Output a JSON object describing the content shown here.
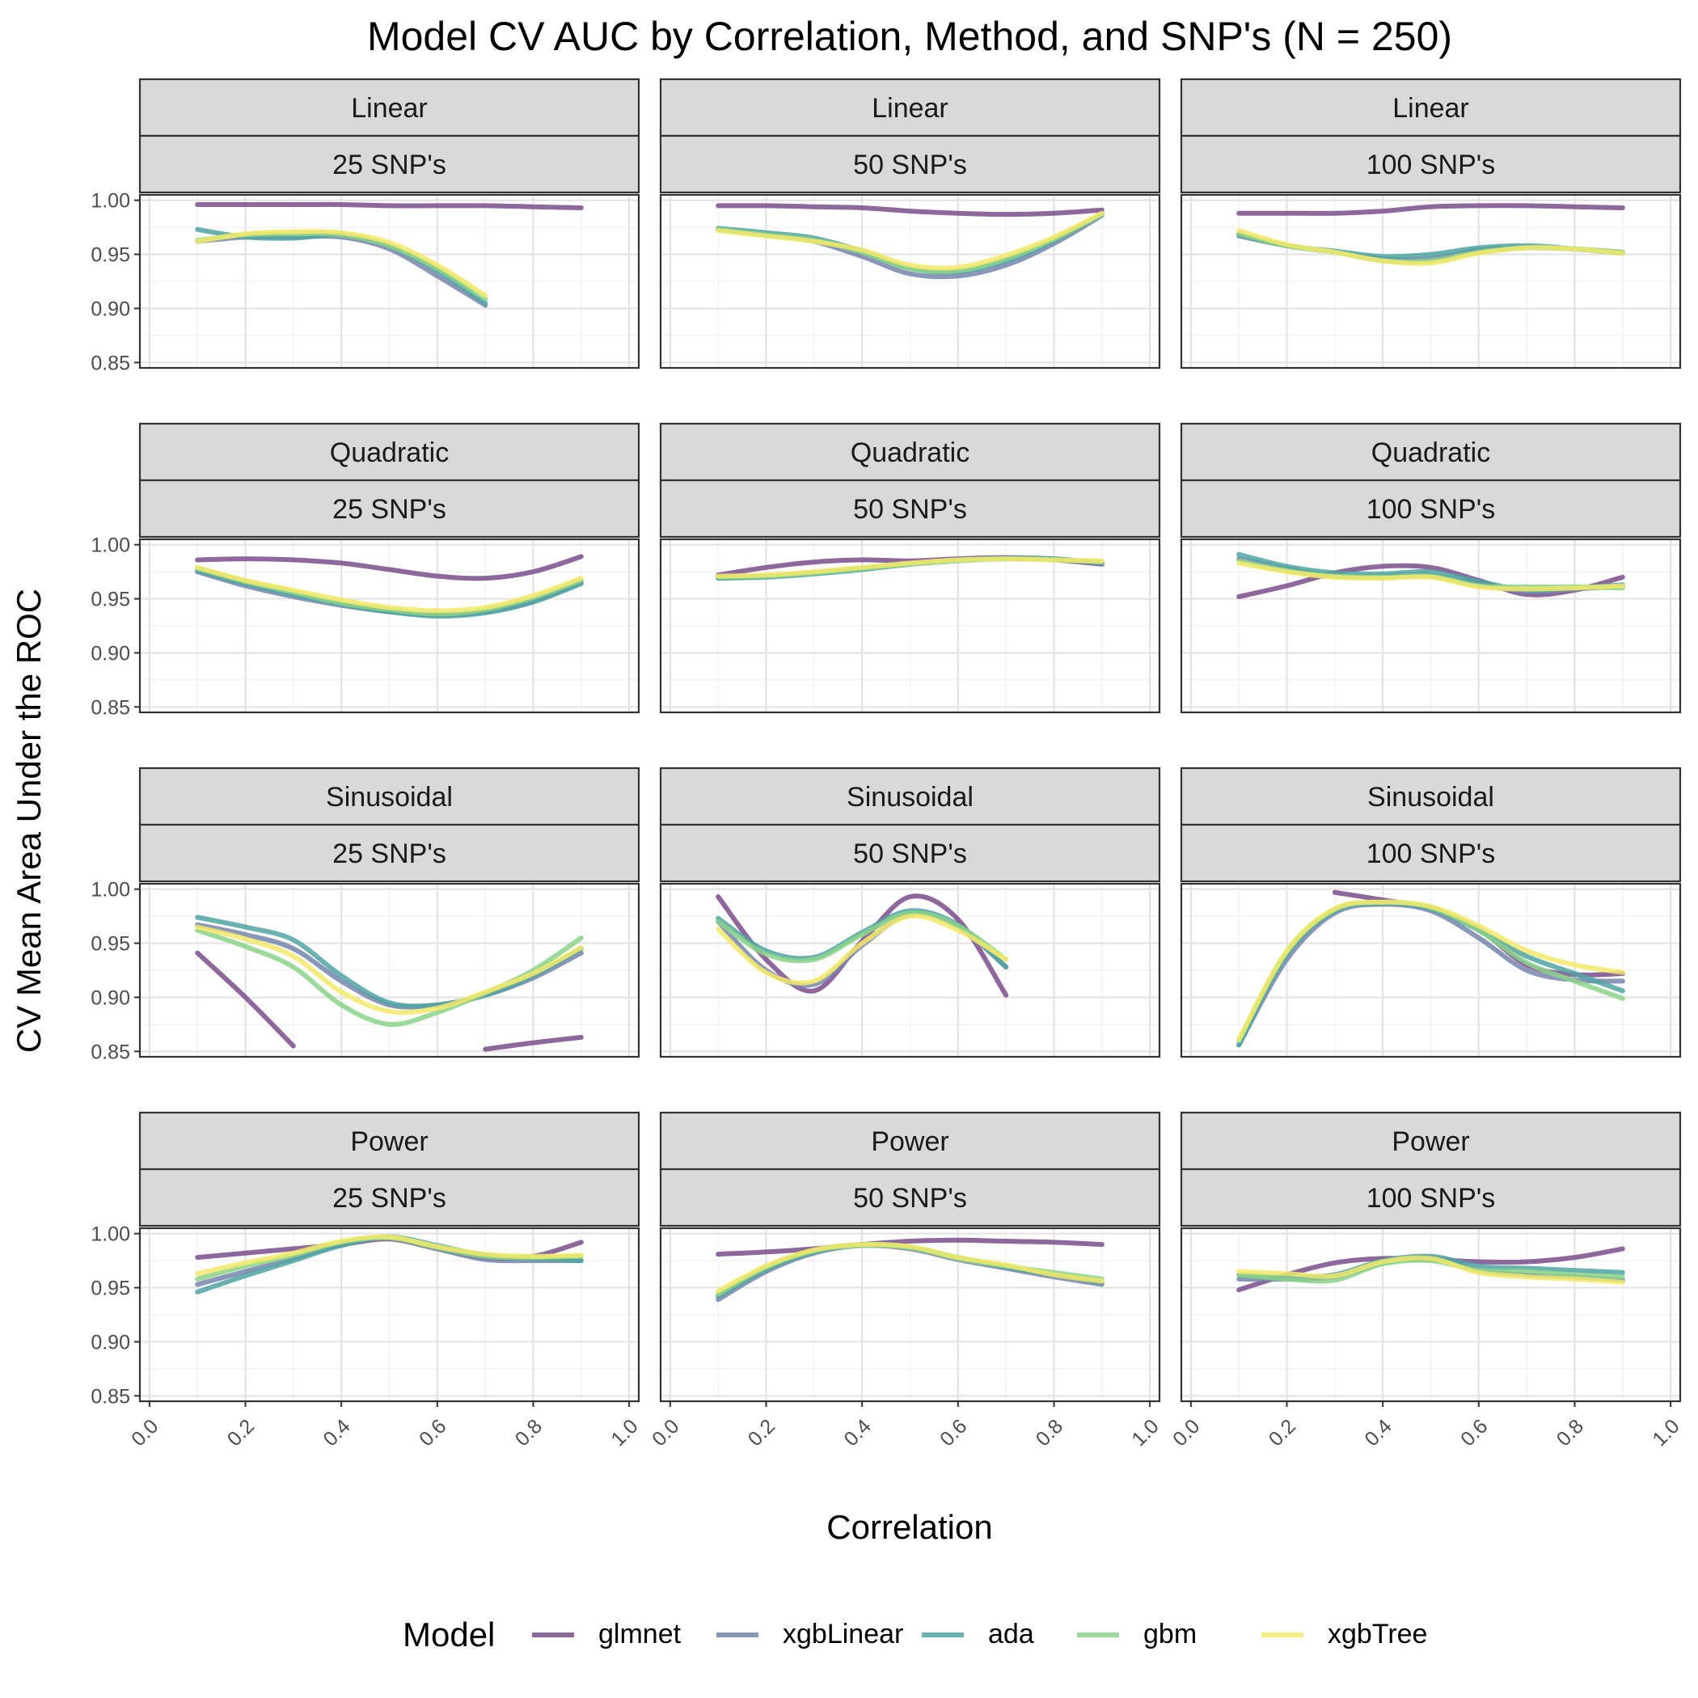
{
  "chart_data": {
    "type": "line",
    "title": "Model CV AUC by Correlation, Method, and SNP's (N = 250)",
    "xlabel": "Correlation",
    "ylabel": "CV Mean Area Under the ROC",
    "xlim": [
      -0.02,
      1.02
    ],
    "ylim": [
      0.845,
      1.005
    ],
    "x_ticks": [
      0.0,
      0.2,
      0.4,
      0.6,
      0.8,
      1.0
    ],
    "x_tick_labels": [
      "0.0",
      "0.2",
      "0.4",
      "0.6",
      "0.8",
      "1.0"
    ],
    "y_ticks": [
      0.85,
      0.9,
      0.95,
      1.0
    ],
    "y_tick_labels": [
      "0.85",
      "0.90",
      "0.95",
      "1.00"
    ],
    "grid": true,
    "legend": {
      "title": "Model",
      "position": "bottom",
      "entries": [
        "glmnet",
        "xgbLinear",
        "ada",
        "gbm",
        "xgbTree"
      ]
    },
    "series_colors": {
      "glmnet": "#7a4e8c",
      "xgbLinear": "#7585ad",
      "ada": "#4fa5a3",
      "gbm": "#8bd48a",
      "xgbTree": "#f3e96a"
    },
    "x": [
      0.1,
      0.2,
      0.3,
      0.4,
      0.5,
      0.6,
      0.7,
      0.8,
      0.9
    ],
    "panels": [
      {
        "method": "Linear",
        "snps": "25  SNP's",
        "series": [
          {
            "name": "glmnet",
            "values": [
              0.996,
              0.996,
              0.996,
              0.996,
              0.995,
              0.995,
              0.995,
              0.994,
              0.993
            ]
          },
          {
            "name": "xgbLinear",
            "values": [
              0.962,
              0.966,
              0.966,
              0.966,
              0.955,
              0.93,
              0.903,
              null,
              null
            ]
          },
          {
            "name": "ada",
            "values": [
              0.973,
              0.966,
              0.965,
              0.968,
              0.958,
              0.935,
              0.905,
              null,
              null
            ]
          },
          {
            "name": "gbm",
            "values": [
              0.963,
              0.968,
              0.969,
              0.968,
              0.958,
              0.937,
              0.909,
              null,
              null
            ]
          },
          {
            "name": "xgbTree",
            "values": [
              0.962,
              0.969,
              0.971,
              0.97,
              0.961,
              0.94,
              0.912,
              null,
              null
            ]
          }
        ]
      },
      {
        "method": "Linear",
        "snps": "50  SNP's",
        "series": [
          {
            "name": "glmnet",
            "values": [
              0.995,
              0.995,
              0.994,
              0.993,
              0.99,
              0.988,
              0.987,
              0.988,
              0.991
            ]
          },
          {
            "name": "xgbLinear",
            "values": [
              0.973,
              0.968,
              0.962,
              0.948,
              0.932,
              0.93,
              0.94,
              0.96,
              0.986
            ]
          },
          {
            "name": "ada",
            "values": [
              0.974,
              0.97,
              0.965,
              0.953,
              0.937,
              0.934,
              0.944,
              0.963,
              0.987
            ]
          },
          {
            "name": "gbm",
            "values": [
              0.973,
              0.968,
              0.963,
              0.952,
              0.937,
              0.935,
              0.946,
              0.964,
              0.987
            ]
          },
          {
            "name": "xgbTree",
            "values": [
              0.972,
              0.967,
              0.962,
              0.954,
              0.94,
              0.938,
              0.949,
              0.966,
              0.988
            ]
          }
        ]
      },
      {
        "method": "Linear",
        "snps": "100 SNP's",
        "series": [
          {
            "name": "glmnet",
            "values": [
              0.988,
              0.988,
              0.988,
              0.99,
              0.994,
              0.995,
              0.995,
              0.994,
              0.993
            ]
          },
          {
            "name": "xgbLinear",
            "values": [
              0.967,
              0.958,
              0.952,
              0.946,
              0.946,
              0.954,
              0.956,
              0.955,
              0.952
            ]
          },
          {
            "name": "ada",
            "values": [
              0.968,
              0.958,
              0.953,
              0.948,
              0.95,
              0.956,
              0.958,
              0.955,
              0.951
            ]
          },
          {
            "name": "gbm",
            "values": [
              0.969,
              0.958,
              0.952,
              0.944,
              0.944,
              0.952,
              0.956,
              0.955,
              0.952
            ]
          },
          {
            "name": "xgbTree",
            "values": [
              0.972,
              0.959,
              0.952,
              0.944,
              0.942,
              0.951,
              0.956,
              0.955,
              0.951
            ]
          }
        ]
      },
      {
        "method": "Quadratic",
        "snps": "25  SNP's",
        "series": [
          {
            "name": "glmnet",
            "values": [
              0.986,
              0.987,
              0.986,
              0.983,
              0.977,
              0.971,
              0.969,
              0.975,
              0.989
            ]
          },
          {
            "name": "xgbLinear",
            "values": [
              0.975,
              0.962,
              0.952,
              0.944,
              0.938,
              0.935,
              0.938,
              0.948,
              0.965
            ]
          },
          {
            "name": "ada",
            "values": [
              0.976,
              0.964,
              0.954,
              0.945,
              0.938,
              0.934,
              0.937,
              0.947,
              0.964
            ]
          },
          {
            "name": "gbm",
            "values": [
              0.978,
              0.966,
              0.956,
              0.946,
              0.94,
              0.936,
              0.94,
              0.951,
              0.967
            ]
          },
          {
            "name": "xgbTree",
            "values": [
              0.979,
              0.967,
              0.958,
              0.949,
              0.942,
              0.939,
              0.942,
              0.953,
              0.969
            ]
          }
        ]
      },
      {
        "method": "Quadratic",
        "snps": "50  SNP's",
        "series": [
          {
            "name": "glmnet",
            "values": [
              0.972,
              0.979,
              0.984,
              0.986,
              0.985,
              0.987,
              0.988,
              0.986,
              0.982
            ]
          },
          {
            "name": "xgbLinear",
            "values": [
              0.969,
              0.971,
              0.974,
              0.978,
              0.982,
              0.986,
              0.988,
              0.987,
              0.983
            ]
          },
          {
            "name": "ada",
            "values": [
              0.969,
              0.97,
              0.973,
              0.977,
              0.982,
              0.986,
              0.987,
              0.987,
              0.983
            ]
          },
          {
            "name": "gbm",
            "values": [
              0.97,
              0.971,
              0.974,
              0.978,
              0.982,
              0.985,
              0.987,
              0.986,
              0.984
            ]
          },
          {
            "name": "xgbTree",
            "values": [
              0.971,
              0.972,
              0.975,
              0.979,
              0.983,
              0.986,
              0.987,
              0.986,
              0.985
            ]
          }
        ]
      },
      {
        "method": "Quadratic",
        "snps": "100 SNP's",
        "series": [
          {
            "name": "glmnet",
            "values": [
              0.952,
              0.962,
              0.974,
              0.98,
              0.979,
              0.967,
              0.954,
              0.958,
              0.97
            ]
          },
          {
            "name": "xgbLinear",
            "values": [
              0.987,
              0.978,
              0.971,
              0.971,
              0.972,
              0.963,
              0.957,
              0.959,
              0.962
            ]
          },
          {
            "name": "ada",
            "values": [
              0.991,
              0.98,
              0.974,
              0.973,
              0.975,
              0.966,
              0.958,
              0.96,
              0.963
            ]
          },
          {
            "name": "gbm",
            "values": [
              0.985,
              0.976,
              0.971,
              0.97,
              0.971,
              0.962,
              0.961,
              0.961,
              0.96
            ]
          },
          {
            "name": "xgbTree",
            "values": [
              0.983,
              0.975,
              0.97,
              0.969,
              0.97,
              0.961,
              0.959,
              0.96,
              0.962
            ]
          }
        ]
      },
      {
        "method": "Sinusoidal",
        "snps": "25  SNP's",
        "series": [
          {
            "name": "glmnet",
            "values": [
              0.941,
              0.9,
              0.855,
              null,
              null,
              null,
              0.852,
              0.858,
              0.863
            ]
          },
          {
            "name": "xgbLinear",
            "values": [
              0.967,
              0.958,
              0.945,
              0.915,
              0.893,
              0.893,
              0.902,
              0.918,
              0.941
            ]
          },
          {
            "name": "ada",
            "values": [
              0.974,
              0.965,
              0.953,
              0.92,
              0.895,
              0.893,
              0.902,
              0.92,
              0.945
            ]
          },
          {
            "name": "gbm",
            "values": [
              0.962,
              0.947,
              0.928,
              0.893,
              0.875,
              0.886,
              0.904,
              0.925,
              0.955
            ]
          },
          {
            "name": "xgbTree",
            "values": [
              0.965,
              0.954,
              0.938,
              0.905,
              0.887,
              0.89,
              0.905,
              0.922,
              0.946
            ]
          }
        ]
      },
      {
        "method": "Sinusoidal",
        "snps": "50  SNP's",
        "series": [
          {
            "name": "glmnet",
            "values": [
              0.993,
              0.935,
              0.906,
              0.952,
              0.993,
              0.972,
              0.902,
              null,
              null
            ]
          },
          {
            "name": "xgbLinear",
            "values": [
              0.97,
              0.925,
              0.912,
              0.948,
              0.977,
              0.965,
              0.928,
              null,
              null
            ]
          },
          {
            "name": "ada",
            "values": [
              0.973,
              0.943,
              0.937,
              0.96,
              0.98,
              0.967,
              0.928,
              null,
              null
            ]
          },
          {
            "name": "gbm",
            "values": [
              0.97,
              0.94,
              0.935,
              0.958,
              0.978,
              0.966,
              0.935,
              null,
              null
            ]
          },
          {
            "name": "xgbTree",
            "values": [
              0.963,
              0.923,
              0.915,
              0.95,
              0.975,
              0.962,
              0.935,
              null,
              null
            ]
          }
        ]
      },
      {
        "method": "Sinusoidal",
        "snps": "100 SNP's",
        "series": [
          {
            "name": "glmnet",
            "values": [
              null,
              null,
              0.997,
              0.99,
              0.982,
              0.963,
              0.93,
              0.921,
              0.922
            ]
          },
          {
            "name": "xgbLinear",
            "values": [
              0.856,
              0.935,
              0.978,
              0.986,
              0.98,
              0.955,
              0.925,
              0.916,
              0.915
            ]
          },
          {
            "name": "ada",
            "values": [
              0.856,
              0.94,
              0.98,
              0.987,
              0.982,
              0.962,
              0.938,
              0.922,
              0.906
            ]
          },
          {
            "name": "gbm",
            "values": [
              0.86,
              0.942,
              0.981,
              0.988,
              0.983,
              0.962,
              0.932,
              0.915,
              0.899
            ]
          },
          {
            "name": "xgbTree",
            "values": [
              0.861,
              0.943,
              0.982,
              0.988,
              0.984,
              0.966,
              0.943,
              0.93,
              0.923
            ]
          }
        ]
      },
      {
        "method": "Power",
        "snps": "25  SNP's",
        "series": [
          {
            "name": "glmnet",
            "values": [
              0.978,
              0.982,
              0.986,
              0.99,
              0.995,
              0.986,
              0.978,
              0.979,
              0.992
            ]
          },
          {
            "name": "xgbLinear",
            "values": [
              0.953,
              0.965,
              0.977,
              0.99,
              0.996,
              0.986,
              0.976,
              0.975,
              0.975
            ]
          },
          {
            "name": "ada",
            "values": [
              0.946,
              0.961,
              0.975,
              0.989,
              0.997,
              0.989,
              0.98,
              0.977,
              0.975
            ]
          },
          {
            "name": "gbm",
            "values": [
              0.958,
              0.97,
              0.98,
              0.992,
              0.996,
              0.987,
              0.979,
              0.978,
              0.979
            ]
          },
          {
            "name": "xgbTree",
            "values": [
              0.963,
              0.973,
              0.982,
              0.993,
              0.997,
              0.988,
              0.981,
              0.979,
              0.98
            ]
          }
        ]
      },
      {
        "method": "Power",
        "snps": "50  SNP's",
        "series": [
          {
            "name": "glmnet",
            "values": [
              0.981,
              0.983,
              0.986,
              0.99,
              0.993,
              0.994,
              0.993,
              0.992,
              0.99
            ]
          },
          {
            "name": "xgbLinear",
            "values": [
              0.939,
              0.965,
              0.982,
              0.989,
              0.986,
              0.976,
              0.968,
              0.96,
              0.953
            ]
          },
          {
            "name": "ada",
            "values": [
              0.942,
              0.967,
              0.983,
              0.99,
              0.987,
              0.978,
              0.969,
              0.962,
              0.955
            ]
          },
          {
            "name": "gbm",
            "values": [
              0.944,
              0.969,
              0.984,
              0.989,
              0.987,
              0.977,
              0.97,
              0.964,
              0.958
            ]
          },
          {
            "name": "xgbTree",
            "values": [
              0.947,
              0.97,
              0.985,
              0.99,
              0.988,
              0.978,
              0.971,
              0.962,
              0.956
            ]
          }
        ]
      },
      {
        "method": "Power",
        "snps": "100 SNP's",
        "series": [
          {
            "name": "glmnet",
            "values": [
              0.948,
              0.962,
              0.973,
              0.977,
              0.976,
              0.974,
              0.974,
              0.978,
              0.986
            ]
          },
          {
            "name": "xgbLinear",
            "values": [
              0.958,
              0.958,
              0.96,
              0.973,
              0.978,
              0.966,
              0.962,
              0.96,
              0.957
            ]
          },
          {
            "name": "ada",
            "values": [
              0.962,
              0.96,
              0.962,
              0.975,
              0.979,
              0.97,
              0.968,
              0.966,
              0.964
            ]
          },
          {
            "name": "gbm",
            "values": [
              0.962,
              0.958,
              0.957,
              0.972,
              0.975,
              0.966,
              0.965,
              0.962,
              0.96
            ]
          },
          {
            "name": "xgbTree",
            "values": [
              0.965,
              0.963,
              0.961,
              0.974,
              0.977,
              0.964,
              0.96,
              0.958,
              0.955
            ]
          }
        ]
      }
    ]
  }
}
